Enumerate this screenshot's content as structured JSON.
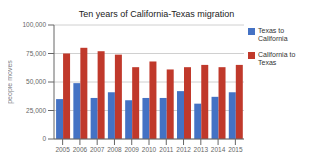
{
  "chart_data": {
    "type": "bar",
    "title": "Ten years of California-Texas migration",
    "y_label": "people moves",
    "categories": [
      "2005",
      "2006",
      "2007",
      "2008",
      "2009",
      "2010",
      "2011",
      "2012",
      "2013",
      "2014",
      "2015"
    ],
    "series": [
      {
        "name": "Texas to\nCalifornia",
        "color": "#4472C4",
        "values": [
          35000,
          49000,
          36000,
          41000,
          34000,
          36000,
          36000,
          42000,
          31000,
          37000,
          41000
        ]
      },
      {
        "name": "California to\nTexas",
        "color": "#C0392B",
        "values": [
          75000,
          80000,
          77000,
          74000,
          63000,
          68000,
          61000,
          63000,
          65000,
          63000,
          65000
        ]
      }
    ],
    "ylim": [
      0,
      100000
    ],
    "yticks": [
      0,
      {
        "value": 25000,
        "label": "25,000"
      },
      {
        "value": 50000,
        "label": "50,000"
      },
      {
        "value": 75000,
        "label": "75,000"
      },
      {
        "value": 100000,
        "label": "100,000"
      }
    ],
    "grid": true,
    "legend": "upper right"
  }
}
